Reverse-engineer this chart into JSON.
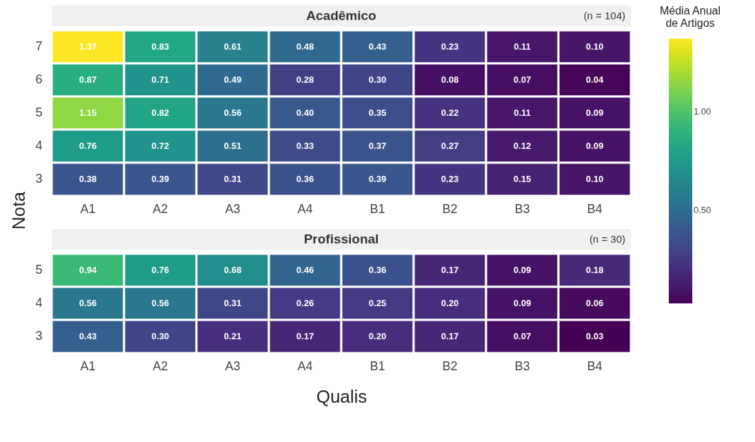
{
  "chart_data": [
    {
      "type": "heatmap",
      "title": "Acadêmico",
      "annotations": [
        "(n = 104)"
      ],
      "ylabel": "Nota",
      "clabel": "Média Anual de Artigos",
      "categories": [
        "A1",
        "A2",
        "A3",
        "A4",
        "B1",
        "B2",
        "B3",
        "B4"
      ],
      "y_categories": [
        "7",
        "6",
        "5",
        "4",
        "3"
      ],
      "cells": [
        [
          1.37,
          0.83,
          0.61,
          0.48,
          0.43,
          0.23,
          0.11,
          0.1
        ],
        [
          0.87,
          0.71,
          0.49,
          0.28,
          0.3,
          0.08,
          0.07,
          0.04
        ],
        [
          1.15,
          0.82,
          0.56,
          0.4,
          0.35,
          0.22,
          0.11,
          0.09
        ],
        [
          0.76,
          0.72,
          0.51,
          0.33,
          0.37,
          0.27,
          0.12,
          0.09
        ],
        [
          0.38,
          0.39,
          0.31,
          0.36,
          0.39,
          0.23,
          0.15,
          0.1
        ]
      ],
      "cell_labels": [
        [
          "1.37",
          "0.83",
          "0.61",
          "0.48",
          "0.43",
          "0.23",
          "0.11",
          "0.10"
        ],
        [
          "0.87",
          "0.71",
          "0.49",
          "0.28",
          "0.30",
          "0.08",
          "0.07",
          "0.04"
        ],
        [
          "1.15",
          "0.82",
          "0.56",
          "0.40",
          "0.35",
          "0.22",
          "0.11",
          "0.09"
        ],
        [
          "0.76",
          "0.72",
          "0.51",
          "0.33",
          "0.37",
          "0.27",
          "0.12",
          "0.09"
        ],
        [
          "0.38",
          "0.39",
          "0.31",
          "0.36",
          "0.39",
          "0.23",
          "0.15",
          "0.10"
        ]
      ],
      "clim": [
        0.03,
        1.37
      ],
      "cticks": [
        {
          "value": 0.5,
          "label": "0.50"
        },
        {
          "value": 1,
          "label": "1.00"
        }
      ]
    },
    {
      "type": "heatmap",
      "title": "Profissional",
      "annotations": [
        "(n = 30)"
      ],
      "xlabel": "Qualis",
      "categories": [
        "A1",
        "A2",
        "A3",
        "A4",
        "B1",
        "B2",
        "B3",
        "B4"
      ],
      "y_categories": [
        "5",
        "4",
        "3"
      ],
      "cells": [
        [
          0.94,
          0.76,
          0.68,
          0.46,
          0.36,
          0.17,
          0.09,
          0.18
        ],
        [
          0.56,
          0.56,
          0.31,
          0.26,
          0.25,
          0.2,
          0.09,
          0.06
        ],
        [
          0.43,
          0.3,
          0.21,
          0.17,
          0.2,
          0.17,
          0.07,
          0.03
        ]
      ],
      "cell_labels": [
        [
          "0.94",
          "0.76",
          "0.68",
          "0.46",
          "0.36",
          "0.17",
          "0.09",
          "0.18"
        ],
        [
          "0.56",
          "0.56",
          "0.31",
          "0.26",
          "0.25",
          "0.20",
          "0.09",
          "0.06"
        ],
        [
          "0.43",
          "0.30",
          "0.21",
          "0.17",
          "0.20",
          "0.17",
          "0.07",
          "0.03"
        ]
      ]
    }
  ]
}
